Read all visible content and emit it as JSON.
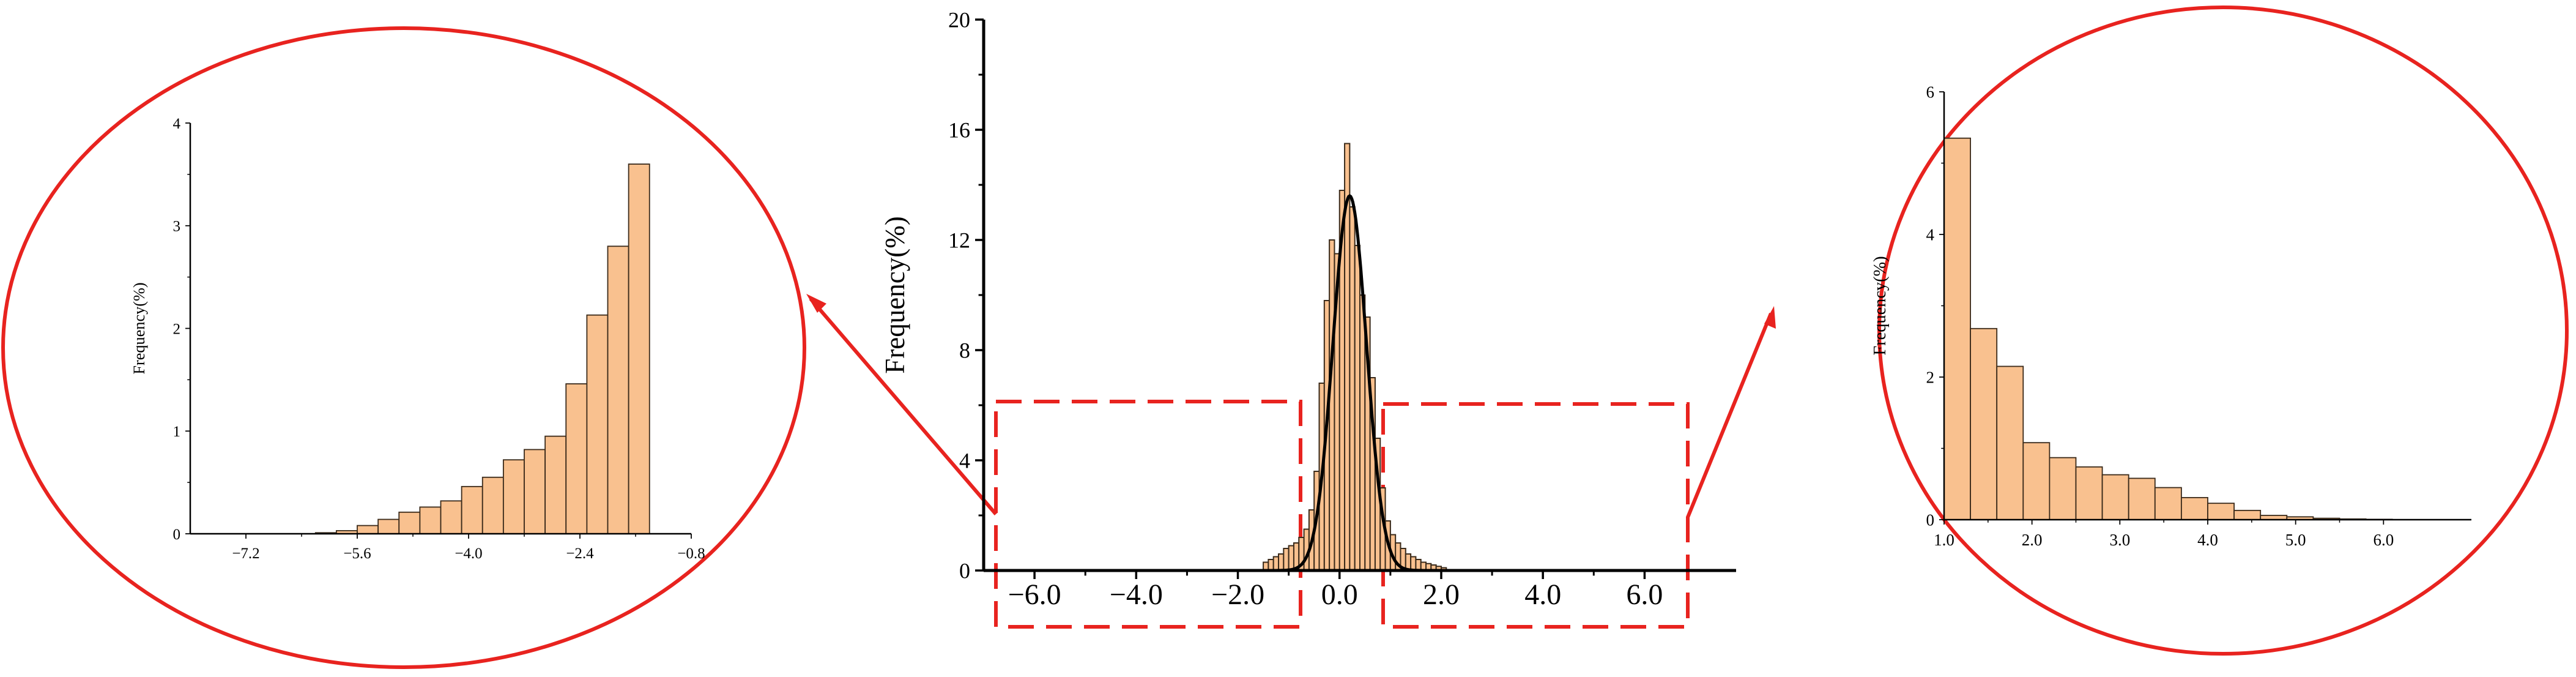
{
  "colors": {
    "bar_fill": "#F9C18F",
    "bar_stroke": "#3a2a1a",
    "highlight": "#E8231F",
    "axis": "#000000",
    "fit_line": "#000000"
  },
  "chart_data": [
    {
      "id": "main",
      "type": "bar",
      "title": "",
      "xlabel": "",
      "ylabel": "Frequency(%)",
      "xlim": [
        -7.0,
        7.8
      ],
      "ylim": [
        0,
        20
      ],
      "x_ticks": [
        -6.0,
        -4.0,
        -2.0,
        0.0,
        2.0,
        4.0,
        6.0
      ],
      "x_tick_labels": [
        "−6.0",
        "−4.0",
        "−2.0",
        "0.0",
        "2.0",
        "4.0",
        "6.0"
      ],
      "y_ticks": [
        0,
        4,
        8,
        12,
        16,
        20
      ],
      "y_tick_labels": [
        "0",
        "4",
        "8",
        "12",
        "16",
        "20"
      ],
      "bin_width": 0.1,
      "bins_x": [
        -1.5,
        -1.4,
        -1.3,
        -1.2,
        -1.1,
        -1.0,
        -0.9,
        -0.8,
        -0.7,
        -0.6,
        -0.5,
        -0.4,
        -0.3,
        -0.2,
        -0.1,
        0.0,
        0.1,
        0.2,
        0.3,
        0.4,
        0.5,
        0.6,
        0.7,
        0.8,
        0.9,
        1.0,
        1.1,
        1.2,
        1.3,
        1.4,
        1.5,
        1.6,
        1.7,
        1.8,
        1.9,
        2.0
      ],
      "bins_y": [
        0.3,
        0.4,
        0.5,
        0.6,
        0.8,
        0.9,
        1.0,
        1.2,
        1.5,
        2.2,
        3.6,
        6.8,
        9.8,
        12.0,
        11.5,
        13.8,
        15.5,
        13.2,
        11.8,
        10.0,
        9.2,
        7.0,
        4.8,
        3.0,
        1.8,
        1.3,
        1.0,
        0.8,
        0.6,
        0.5,
        0.4,
        0.3,
        0.25,
        0.2,
        0.15,
        0.1
      ],
      "fit_curve": {
        "type": "normal",
        "mean": 0.2,
        "sd": 0.33,
        "peak": 13.6
      },
      "grid": false,
      "highlight_boxes": [
        "left-tail",
        "right-tail"
      ]
    },
    {
      "id": "left-inset",
      "type": "bar",
      "title": "",
      "xlabel": "",
      "ylabel": "Frequency(%)",
      "xlim": [
        -8.0,
        -0.8
      ],
      "ylim": [
        0,
        4
      ],
      "x_ticks": [
        -7.2,
        -5.6,
        -4.0,
        -2.4,
        -0.8
      ],
      "x_tick_labels": [
        "−7.2",
        "−5.6",
        "−4.0",
        "−2.4",
        "−0.8"
      ],
      "y_ticks": [
        0,
        1,
        2,
        3,
        4
      ],
      "y_tick_labels": [
        "0",
        "1",
        "2",
        "3",
        "4"
      ],
      "bin_width": 0.3,
      "bins_x": [
        -6.2,
        -5.9,
        -5.6,
        -5.3,
        -5.0,
        -4.7,
        -4.4,
        -4.1,
        -3.8,
        -3.5,
        -3.2,
        -2.9,
        -2.6,
        -2.3,
        -2.0,
        -1.7,
        -1.4,
        -1.1
      ],
      "bins_y": [
        0.01,
        0.03,
        0.08,
        0.14,
        0.21,
        0.26,
        0.32,
        0.46,
        0.55,
        0.72,
        0.82,
        0.95,
        1.46,
        2.13,
        2.8,
        3.6,
        0,
        0
      ],
      "grid": false
    },
    {
      "id": "right-inset",
      "type": "bar",
      "title": "",
      "xlabel": "",
      "ylabel": "Frequency(%)",
      "xlim": [
        1.0,
        7.0
      ],
      "ylim": [
        0,
        6
      ],
      "x_ticks": [
        1.0,
        2.0,
        3.0,
        4.0,
        5.0,
        6.0
      ],
      "x_tick_labels": [
        "1.0",
        "2.0",
        "3.0",
        "4.0",
        "5.0",
        "6.0"
      ],
      "y_ticks": [
        0,
        2,
        4,
        6
      ],
      "y_tick_labels": [
        "0",
        "2",
        "4",
        "6"
      ],
      "bin_width": 0.3,
      "bins_x": [
        1.0,
        1.3,
        1.6,
        1.9,
        2.2,
        2.5,
        2.8,
        3.1,
        3.4,
        3.7,
        4.0,
        4.3,
        4.6,
        4.9,
        5.2,
        5.5,
        5.8
      ],
      "bins_y": [
        5.35,
        2.68,
        2.15,
        1.08,
        0.87,
        0.74,
        0.63,
        0.58,
        0.45,
        0.31,
        0.23,
        0.13,
        0.06,
        0.04,
        0.02,
        0.01,
        0.005
      ],
      "grid": false
    }
  ]
}
